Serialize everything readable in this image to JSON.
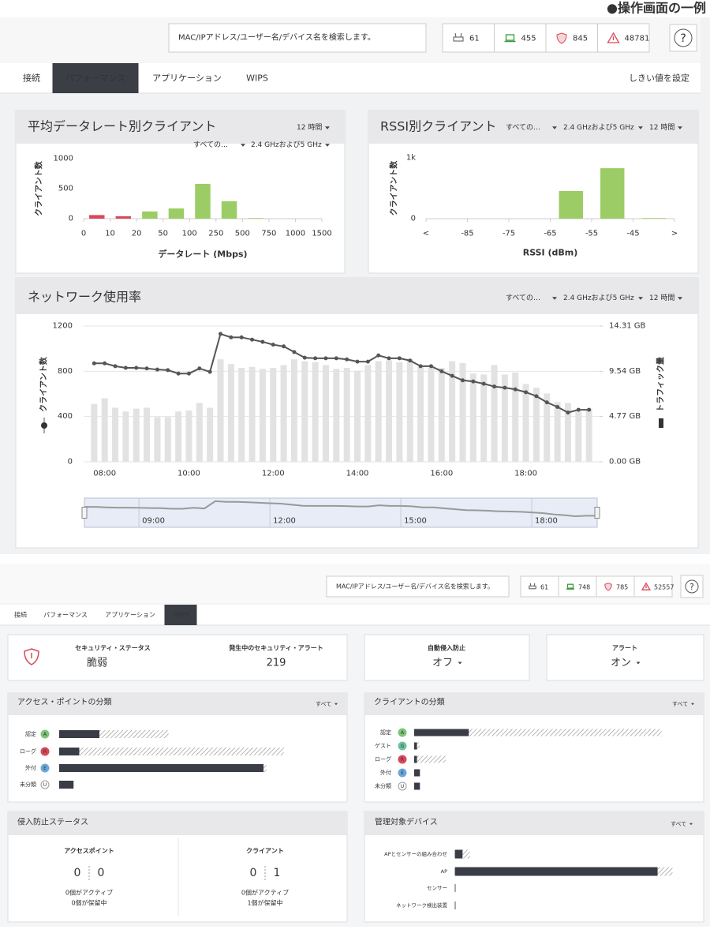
{
  "caption": "●操作画面の一例",
  "screen1": {
    "search_placeholder": "MAC/IPアドレス/ユーザー名/デバイス名を検索します。",
    "counters": [
      61,
      455,
      845,
      48781
    ],
    "help": "?",
    "tabs": [
      "接続",
      "パフォーマンス",
      "アプリケーション",
      "WIPS"
    ],
    "active_tab": 1,
    "threshold_link": "しきい値を設定"
  },
  "chart_data": [
    {
      "type": "histogram",
      "title": "平均データレート別クライアント",
      "filters": [
        "すべての…",
        "2.4 GHzおよび5 GHz"
      ],
      "period": "12 時間",
      "y_label": "クライアント数",
      "x_label": "データレート (Mbps)",
      "bins": [
        0,
        10,
        20,
        50,
        100,
        250,
        500,
        750,
        1000,
        1500
      ],
      "values": [
        60,
        40,
        120,
        170,
        580,
        290,
        10,
        0,
        0
      ],
      "colors": [
        "#d9485a",
        "#d9485a",
        "#9ccc65",
        "#9ccc65",
        "#9ccc65",
        "#9ccc65",
        "#9ccc65",
        "#9ccc65",
        "#9ccc65"
      ],
      "ylim": [
        0,
        1000
      ],
      "yticks": [
        0,
        500,
        1000
      ]
    },
    {
      "type": "histogram",
      "title": "RSSI別クライアント",
      "filters": [
        "すべての…",
        "2.4 GHzおよび5 GHz"
      ],
      "period": "12 時間",
      "y_label": "クライアント数",
      "x_label": "RSSI (dBm)",
      "bins": [
        "<",
        -85,
        -75,
        -65,
        -55,
        -45,
        ">"
      ],
      "values": [
        0,
        0,
        0,
        455,
        830,
        10
      ],
      "colors": [
        "#9ccc65",
        "#9ccc65",
        "#9ccc65",
        "#9ccc65",
        "#9ccc65",
        "#9ccc65"
      ],
      "ylim": [
        0,
        1000
      ],
      "yticks": [
        0,
        {
          "value": 1000,
          "label": "1k"
        }
      ]
    },
    {
      "type": "combo",
      "title": "ネットワーク使用率",
      "filters": [
        "すべての…",
        "2.4 GHzおよび5 GHz"
      ],
      "period": "12 時間",
      "x": [
        "07:45",
        "08:00",
        "08:15",
        "08:30",
        "08:45",
        "09:00",
        "09:15",
        "09:30",
        "09:45",
        "10:00",
        "10:15",
        "10:30",
        "10:45",
        "11:00",
        "11:15",
        "11:30",
        "11:45",
        "12:00",
        "12:15",
        "12:30",
        "12:45",
        "13:00",
        "13:15",
        "13:30",
        "13:45",
        "14:00",
        "14:15",
        "14:30",
        "14:45",
        "15:00",
        "15:15",
        "15:30",
        "15:45",
        "16:00",
        "16:15",
        "16:30",
        "16:45",
        "17:00",
        "17:15",
        "17:30",
        "17:45",
        "18:00",
        "18:15",
        "18:30",
        "18:45",
        "19:00",
        "19:15",
        "19:30"
      ],
      "xlim": [
        "07:30",
        "19:45"
      ],
      "xticks": [
        "08:00",
        "10:00",
        "12:00",
        "14:00",
        "16:00",
        "18:00"
      ],
      "navigator_ticks": [
        "09:00",
        "12:00",
        "15:00",
        "18:00"
      ],
      "series": [
        {
          "name": "クライアント数",
          "type": "line",
          "color": "#555555",
          "values": [
            870,
            870,
            845,
            830,
            830,
            825,
            815,
            810,
            780,
            780,
            825,
            795,
            1130,
            1100,
            1100,
            1080,
            1060,
            1035,
            1020,
            970,
            920,
            915,
            915,
            915,
            905,
            885,
            885,
            940,
            915,
            915,
            895,
            845,
            845,
            800,
            760,
            720,
            710,
            690,
            665,
            655,
            640,
            615,
            580,
            525,
            485,
            435,
            460,
            460
          ]
        },
        {
          "name": "トラフィック量",
          "type": "bar",
          "axis": "y2",
          "color": "#e2e2e2",
          "values": [
            6.1,
            6.7,
            5.7,
            5.3,
            5.6,
            5.7,
            4.7,
            4.7,
            5.3,
            5.4,
            6.2,
            5.7,
            10.8,
            10.3,
            9.9,
            10.0,
            9.8,
            9.9,
            10.2,
            10.8,
            10.6,
            10.5,
            10.2,
            9.8,
            9.9,
            9.6,
            10.2,
            10.6,
            10.7,
            10.5,
            10.8,
            10.0,
            9.9,
            9.9,
            10.6,
            10.4,
            9.3,
            9.2,
            10.2,
            9.2,
            9.4,
            8.2,
            7.8,
            7.2,
            6.3,
            6.2,
            5.3,
            5.6
          ]
        }
      ],
      "ylim": [
        0,
        1200
      ],
      "yticks": [
        0,
        400,
        800,
        1200
      ],
      "y2lim": [
        0,
        14.31
      ],
      "y2ticks": [
        {
          "value": 0,
          "label": "0.00 GB"
        },
        {
          "value": 4.77,
          "label": "4.77 GB"
        },
        {
          "value": 9.54,
          "label": "9.54 GB"
        },
        {
          "value": 14.31,
          "label": "14.31 GB"
        }
      ],
      "grid": true
    }
  ],
  "screen2": {
    "search_placeholder": "MAC/IPアドレス/ユーザー名/デバイス名を検索します。",
    "counters": [
      61,
      748,
      785,
      52557
    ],
    "help": "?",
    "tabs": [
      "接続",
      "パフォーマンス",
      "アプリケーション",
      "WIPS"
    ],
    "active_tab": 3,
    "security": {
      "status_label": "セキュリティ・ステータス",
      "status": "脆弱",
      "alerts_label": "発生中のセキュリティ・アラート",
      "alerts": 219
    },
    "auto_prevention": {
      "label": "自動侵入防止",
      "value": "オフ"
    },
    "alert": {
      "label": "アラート",
      "value": "オン"
    },
    "ap_classification": {
      "title": "アクセス・ポイントの分類",
      "filter": "すべて",
      "xlim": [
        0,
        100
      ],
      "rows": [
        {
          "label": "認定",
          "badge": "A",
          "color": "#7cc576",
          "solid": 14,
          "hatched": 24
        },
        {
          "label": "ローグ",
          "badge": "R",
          "color": "#d9485a",
          "solid": 7,
          "hatched": 71
        },
        {
          "label": "外付",
          "badge": "E",
          "color": "#6aa8dc",
          "solid": 71,
          "hatched": 1
        },
        {
          "label": "未分類",
          "badge": "U",
          "color": "#ffffff",
          "solid": 5,
          "hatched": 0
        }
      ]
    },
    "client_classification": {
      "title": "クライアントの分類",
      "filter": "すべて",
      "xlim": [
        0,
        100
      ],
      "rows": [
        {
          "label": "認定",
          "badge": "A",
          "color": "#7cc576",
          "solid": 19,
          "hatched": 67
        },
        {
          "label": "ゲスト",
          "badge": "G",
          "color": "#6cc3a0",
          "solid": 1,
          "hatched": 1
        },
        {
          "label": "ローグ",
          "badge": "R",
          "color": "#d9485a",
          "solid": 1,
          "hatched": 10
        },
        {
          "label": "外付",
          "badge": "E",
          "color": "#6aa8dc",
          "solid": 2,
          "hatched": 0
        },
        {
          "label": "未分類",
          "badge": "U",
          "color": "#ffffff",
          "solid": 2,
          "hatched": 0
        }
      ]
    },
    "prevention_status": {
      "title": "侵入防止ステータス",
      "columns": [
        {
          "label": "アクセスポイント",
          "active": 0,
          "pending": 0,
          "active_text": "0個がアクティブ",
          "pending_text": "0個が保留中"
        },
        {
          "label": "クライアント",
          "active": 0,
          "pending": 1,
          "active_text": "0個がアクティブ",
          "pending_text": "1個が保留中"
        }
      ]
    },
    "managed_devices": {
      "title": "管理対象デバイス",
      "filter": "すべて",
      "xlim": [
        0,
        100
      ],
      "rows": [
        {
          "label": "APとセンサーの組み合わせ",
          "solid": 3,
          "hatched": 3
        },
        {
          "label": "AP",
          "solid": 82,
          "hatched": 6
        },
        {
          "label": "センサー",
          "solid": 0,
          "hatched": 0
        },
        {
          "label": "ネットワーク検出装置",
          "solid": 0,
          "hatched": 0
        }
      ]
    }
  }
}
